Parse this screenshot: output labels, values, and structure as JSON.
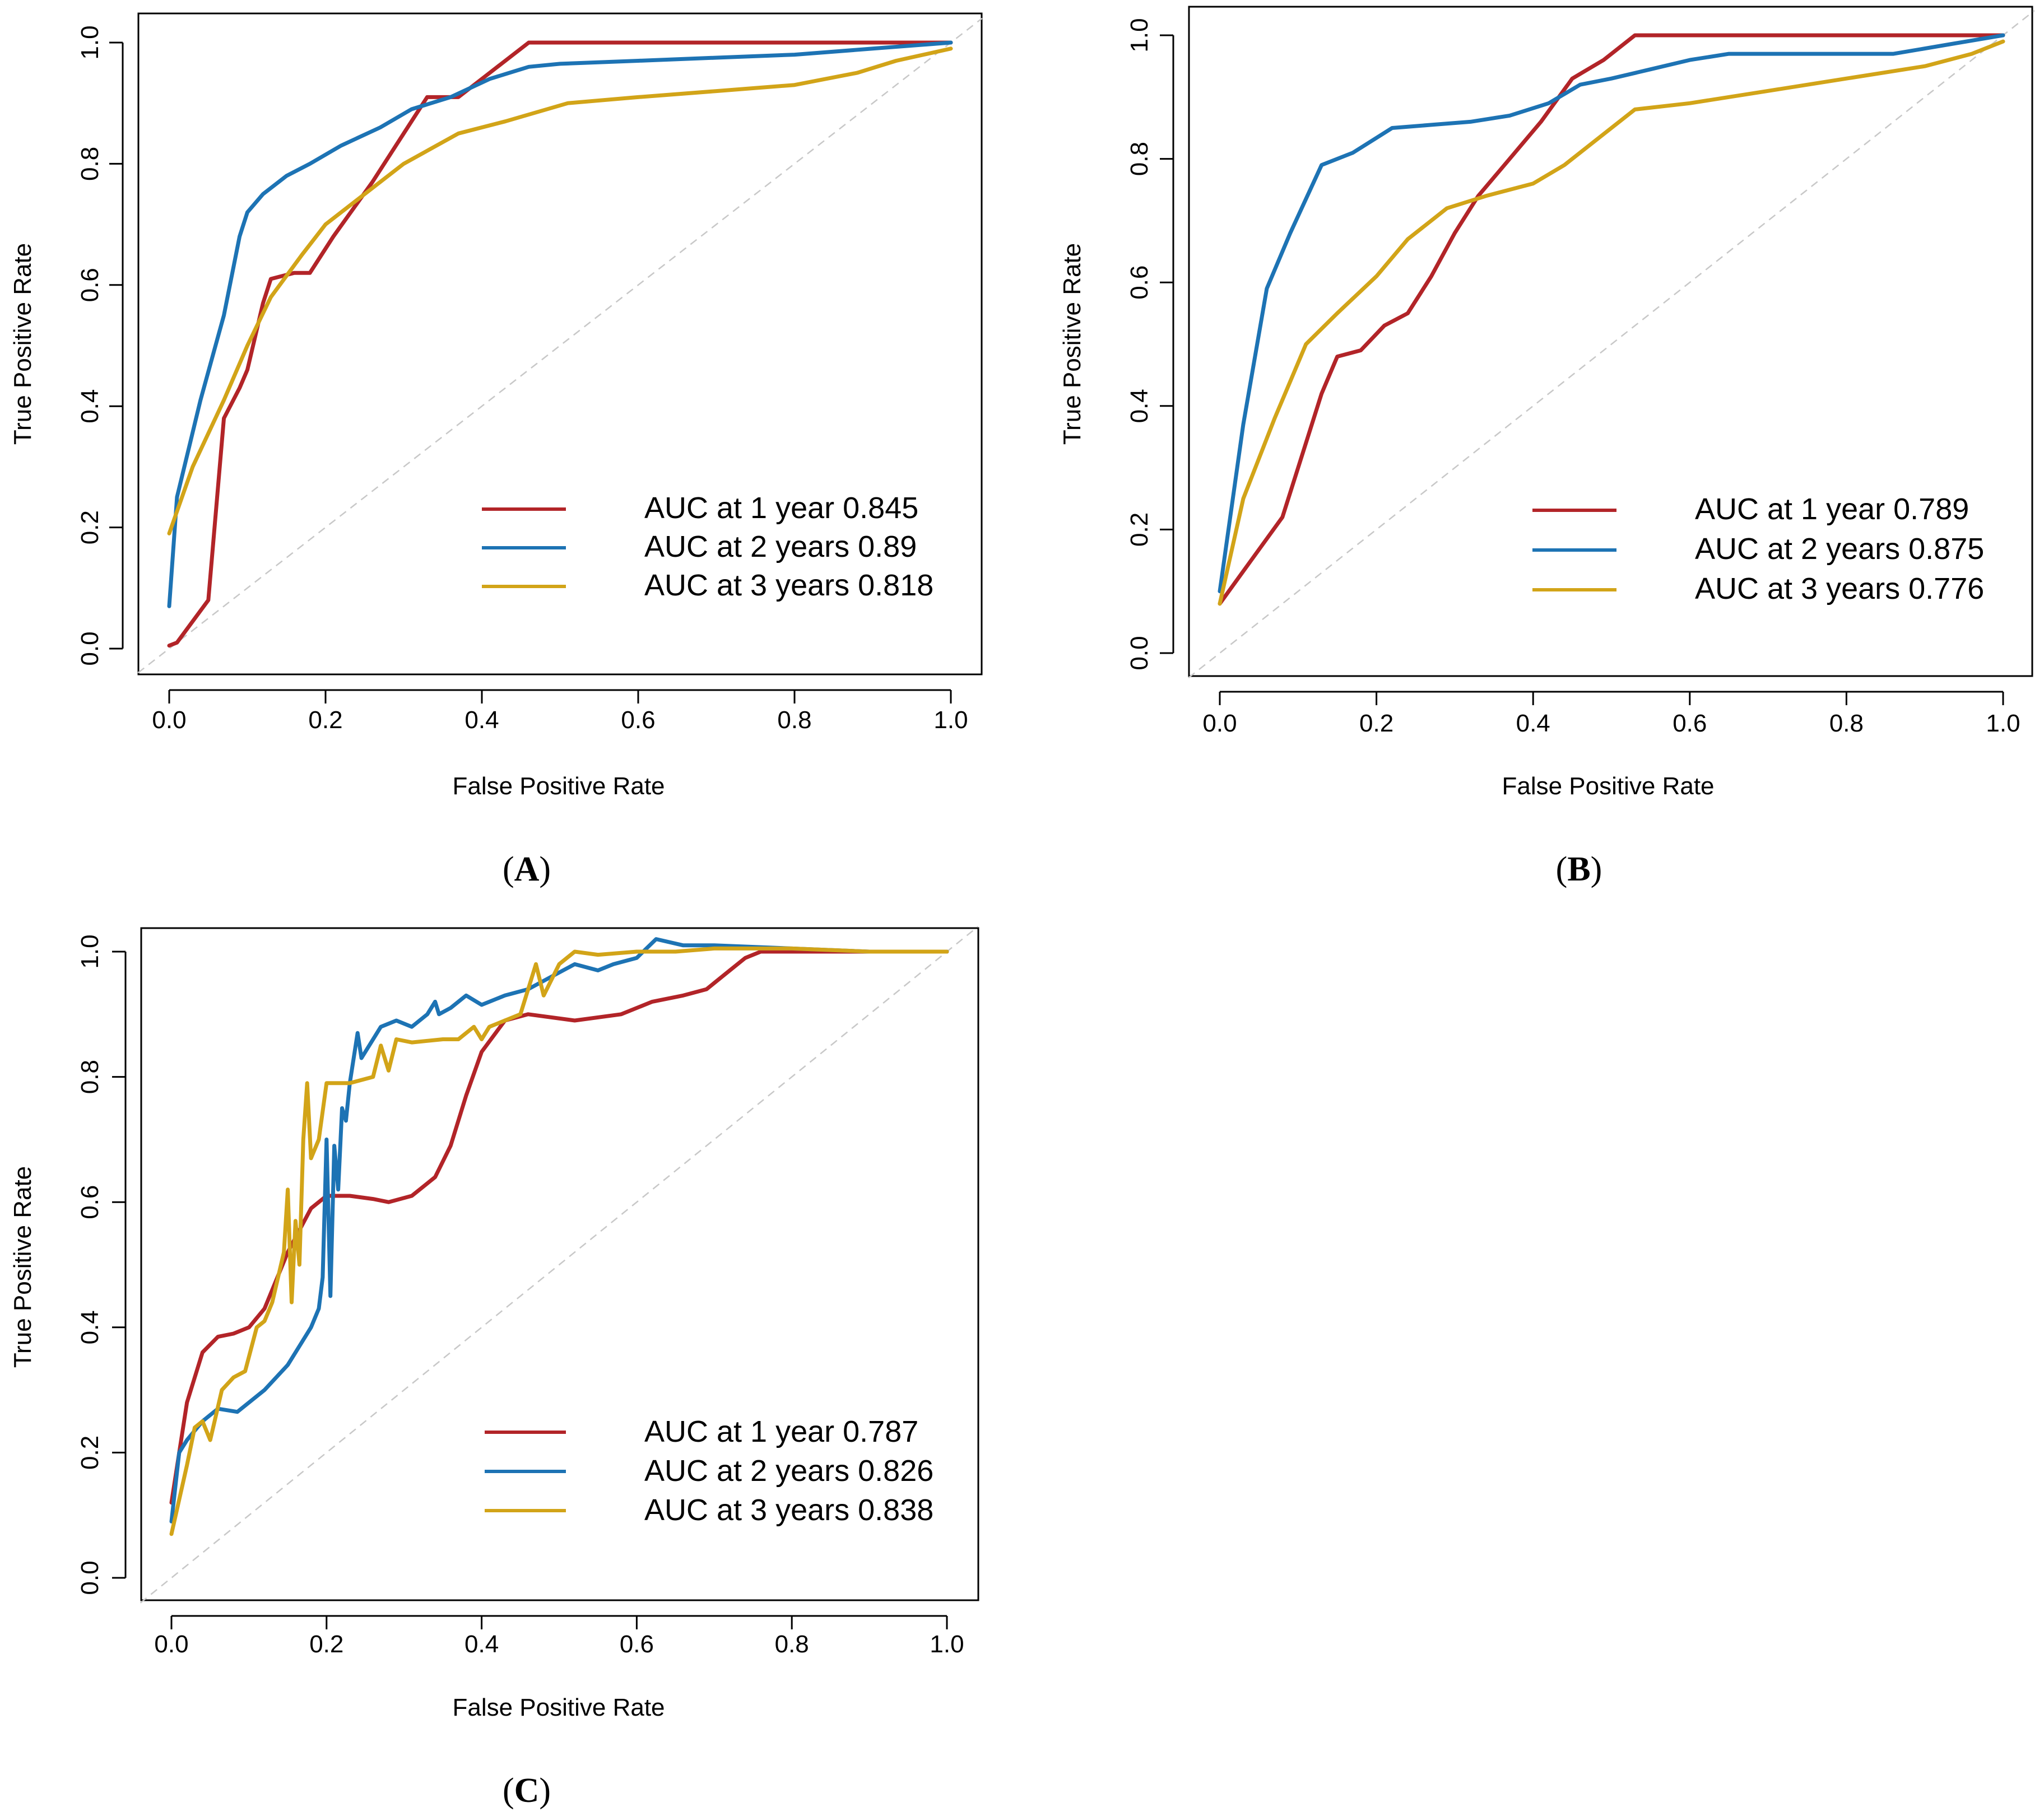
{
  "figure": {
    "panels": [
      {
        "caption_open": "(",
        "caption_letter": "A",
        "caption_close": ")",
        "legend_entries": [
          {
            "label": "AUC at 1 year 0.845",
            "color": "#b22428"
          },
          {
            "label": "AUC at 2 years 0.89",
            "color": "#1d73b4"
          },
          {
            "label": "AUC at 3 years 0.818",
            "color": "#d2a418"
          }
        ]
      },
      {
        "caption_open": "(",
        "caption_letter": "B",
        "caption_close": ")",
        "legend_entries": [
          {
            "label": "AUC at 1 year 0.789",
            "color": "#b22428"
          },
          {
            "label": "AUC at 2 years 0.875",
            "color": "#1d73b4"
          },
          {
            "label": "AUC at 3 years 0.776",
            "color": "#d2a418"
          }
        ]
      },
      {
        "caption_open": "(",
        "caption_letter": "C",
        "caption_close": ")",
        "legend_entries": [
          {
            "label": "AUC at 1 year 0.787",
            "color": "#b22428"
          },
          {
            "label": "AUC at 2 years 0.826",
            "color": "#1d73b4"
          },
          {
            "label": "AUC at 3 years 0.838",
            "color": "#d2a418"
          }
        ]
      }
    ]
  },
  "chart_data": [
    {
      "type": "line",
      "panel": "A",
      "xlabel": "False Positive Rate",
      "ylabel": "True Positive Rate",
      "xlim": [
        0,
        1
      ],
      "ylim": [
        0,
        1
      ],
      "xticks": [
        "0.0",
        "0.2",
        "0.4",
        "0.6",
        "0.8",
        "1.0"
      ],
      "yticks": [
        "0.0",
        "0.2",
        "0.4",
        "0.6",
        "0.8",
        "1.0"
      ],
      "legend_position": "bottom-right",
      "reference_line": "diagonal dashed",
      "series": [
        {
          "name": "AUC at 1 year 0.845",
          "color": "#b22428",
          "x": [
            0.0,
            0.01,
            0.05,
            0.07,
            0.09,
            0.1,
            0.12,
            0.13,
            0.16,
            0.18,
            0.21,
            0.26,
            0.3,
            0.33,
            0.35,
            0.37,
            0.41,
            0.44,
            0.46,
            0.5,
            0.7,
            1.0
          ],
          "y": [
            0.005,
            0.01,
            0.08,
            0.38,
            0.43,
            0.46,
            0.57,
            0.61,
            0.62,
            0.62,
            0.68,
            0.77,
            0.85,
            0.91,
            0.91,
            0.91,
            0.95,
            0.98,
            1.0,
            1.0,
            1.0,
            1.0
          ]
        },
        {
          "name": "AUC at 2 years 0.89",
          "color": "#1d73b4",
          "x": [
            0.0,
            0.01,
            0.04,
            0.07,
            0.09,
            0.1,
            0.12,
            0.15,
            0.18,
            0.22,
            0.27,
            0.31,
            0.36,
            0.41,
            0.46,
            0.5,
            0.6,
            0.7,
            0.8,
            0.9,
            1.0
          ],
          "y": [
            0.07,
            0.25,
            0.41,
            0.55,
            0.68,
            0.72,
            0.75,
            0.78,
            0.8,
            0.83,
            0.86,
            0.89,
            0.91,
            0.94,
            0.96,
            0.965,
            0.97,
            0.975,
            0.98,
            0.99,
            1.0
          ],
          "step": false
        },
        {
          "name": "AUC at 3 years 0.818",
          "color": "#d2a418",
          "x": [
            0.0,
            0.03,
            0.07,
            0.1,
            0.13,
            0.17,
            0.2,
            0.24,
            0.3,
            0.37,
            0.43,
            0.51,
            0.6,
            0.7,
            0.8,
            0.88,
            0.93,
            1.0
          ],
          "y": [
            0.19,
            0.3,
            0.41,
            0.5,
            0.58,
            0.65,
            0.7,
            0.74,
            0.8,
            0.85,
            0.87,
            0.9,
            0.91,
            0.92,
            0.93,
            0.95,
            0.97,
            0.99
          ]
        }
      ]
    },
    {
      "type": "line",
      "panel": "B",
      "xlabel": "False Positive Rate",
      "ylabel": "True Positive Rate",
      "xlim": [
        0,
        1
      ],
      "ylim": [
        0,
        1
      ],
      "xticks": [
        "0.0",
        "0.2",
        "0.4",
        "0.6",
        "0.8",
        "1.0"
      ],
      "yticks": [
        "0.0",
        "0.2",
        "0.4",
        "0.6",
        "0.8",
        "1.0"
      ],
      "legend_position": "bottom-right",
      "reference_line": "diagonal dashed",
      "series": [
        {
          "name": "AUC at 1 year 0.789",
          "color": "#b22428",
          "x": [
            0.0,
            0.04,
            0.08,
            0.1,
            0.13,
            0.15,
            0.18,
            0.21,
            0.24,
            0.27,
            0.3,
            0.33,
            0.37,
            0.41,
            0.45,
            0.49,
            0.53,
            0.56,
            0.7,
            1.0
          ],
          "y": [
            0.08,
            0.15,
            0.22,
            0.3,
            0.42,
            0.48,
            0.49,
            0.53,
            0.55,
            0.61,
            0.68,
            0.74,
            0.8,
            0.86,
            0.93,
            0.96,
            1.0,
            1.0,
            1.0,
            1.0
          ]
        },
        {
          "name": "AUC at 2 years 0.875",
          "color": "#1d73b4",
          "x": [
            0.0,
            0.03,
            0.06,
            0.09,
            0.13,
            0.17,
            0.22,
            0.27,
            0.32,
            0.37,
            0.42,
            0.46,
            0.5,
            0.55,
            0.6,
            0.65,
            0.72,
            0.8,
            0.86,
            0.93,
            1.0
          ],
          "y": [
            0.1,
            0.37,
            0.59,
            0.68,
            0.79,
            0.81,
            0.85,
            0.855,
            0.86,
            0.87,
            0.89,
            0.92,
            0.93,
            0.945,
            0.96,
            0.97,
            0.97,
            0.97,
            0.97,
            0.985,
            1.0
          ]
        },
        {
          "name": "AUC at 3 years 0.776",
          "color": "#d2a418",
          "x": [
            0.0,
            0.03,
            0.07,
            0.11,
            0.15,
            0.2,
            0.24,
            0.29,
            0.34,
            0.4,
            0.44,
            0.48,
            0.53,
            0.6,
            0.7,
            0.8,
            0.9,
            0.96,
            1.0
          ],
          "y": [
            0.08,
            0.25,
            0.38,
            0.5,
            0.55,
            0.61,
            0.67,
            0.72,
            0.74,
            0.76,
            0.79,
            0.83,
            0.88,
            0.89,
            0.91,
            0.93,
            0.95,
            0.97,
            0.99
          ]
        }
      ]
    },
    {
      "type": "line",
      "panel": "C",
      "xlabel": "False Positive Rate",
      "ylabel": "True Positive Rate",
      "xlim": [
        0,
        1
      ],
      "ylim": [
        0,
        1
      ],
      "xticks": [
        "0.0",
        "0.2",
        "0.4",
        "0.6",
        "0.8",
        "1.0"
      ],
      "yticks": [
        "0.0",
        "0.2",
        "0.4",
        "0.6",
        "0.8",
        "1.0"
      ],
      "legend_position": "bottom-right",
      "reference_line": "diagonal dashed",
      "series": [
        {
          "name": "AUC at 1 year 0.787",
          "color": "#b22428",
          "x": [
            0.0,
            0.02,
            0.04,
            0.06,
            0.08,
            0.1,
            0.12,
            0.15,
            0.18,
            0.2,
            0.23,
            0.26,
            0.28,
            0.31,
            0.34,
            0.36,
            0.38,
            0.4,
            0.43,
            0.46,
            0.52,
            0.58,
            0.62,
            0.66,
            0.69,
            0.72,
            0.74,
            0.76,
            0.8,
            0.9,
            1.0
          ],
          "y": [
            0.12,
            0.28,
            0.36,
            0.385,
            0.39,
            0.4,
            0.43,
            0.52,
            0.59,
            0.61,
            0.61,
            0.605,
            0.6,
            0.61,
            0.64,
            0.69,
            0.77,
            0.84,
            0.89,
            0.9,
            0.89,
            0.9,
            0.92,
            0.93,
            0.94,
            0.97,
            0.99,
            1.0,
            1.0,
            1.0,
            1.0
          ]
        },
        {
          "name": "AUC at 2 years 0.826",
          "color": "#1d73b4",
          "x": [
            0.0,
            0.01,
            0.02,
            0.04,
            0.06,
            0.085,
            0.12,
            0.15,
            0.165,
            0.18,
            0.19,
            0.195,
            0.2,
            0.205,
            0.21,
            0.215,
            0.22,
            0.225,
            0.23,
            0.24,
            0.245,
            0.25,
            0.27,
            0.29,
            0.31,
            0.33,
            0.34,
            0.345,
            0.36,
            0.38,
            0.4,
            0.43,
            0.46,
            0.49,
            0.52,
            0.55,
            0.57,
            0.6,
            0.625,
            0.66,
            0.7,
            0.8,
            0.9,
            1.0
          ],
          "y": [
            0.09,
            0.2,
            0.22,
            0.25,
            0.27,
            0.265,
            0.3,
            0.34,
            0.37,
            0.4,
            0.43,
            0.48,
            0.7,
            0.45,
            0.69,
            0.62,
            0.75,
            0.73,
            0.79,
            0.87,
            0.83,
            0.84,
            0.88,
            0.89,
            0.88,
            0.9,
            0.92,
            0.9,
            0.91,
            0.93,
            0.915,
            0.93,
            0.94,
            0.96,
            0.98,
            0.97,
            0.98,
            0.99,
            1.02,
            1.01,
            1.01,
            1.005,
            1.0,
            1.0
          ]
        },
        {
          "name": "AUC at 3 years 0.838",
          "color": "#d2a418",
          "x": [
            0.0,
            0.02,
            0.03,
            0.04,
            0.05,
            0.065,
            0.08,
            0.095,
            0.11,
            0.12,
            0.13,
            0.145,
            0.15,
            0.155,
            0.16,
            0.165,
            0.17,
            0.175,
            0.18,
            0.19,
            0.2,
            0.21,
            0.23,
            0.26,
            0.27,
            0.28,
            0.29,
            0.31,
            0.35,
            0.37,
            0.39,
            0.4,
            0.41,
            0.43,
            0.45,
            0.47,
            0.48,
            0.5,
            0.52,
            0.55,
            0.6,
            0.65,
            0.7,
            0.8,
            0.9,
            1.0
          ],
          "y": [
            0.07,
            0.18,
            0.24,
            0.25,
            0.22,
            0.3,
            0.32,
            0.33,
            0.4,
            0.41,
            0.44,
            0.52,
            0.62,
            0.44,
            0.57,
            0.5,
            0.7,
            0.79,
            0.67,
            0.7,
            0.79,
            0.79,
            0.79,
            0.8,
            0.85,
            0.81,
            0.86,
            0.855,
            0.86,
            0.86,
            0.88,
            0.86,
            0.88,
            0.89,
            0.9,
            0.98,
            0.93,
            0.98,
            1.0,
            0.995,
            1.0,
            1.0,
            1.005,
            1.005,
            1.0,
            1.0
          ]
        }
      ]
    }
  ]
}
